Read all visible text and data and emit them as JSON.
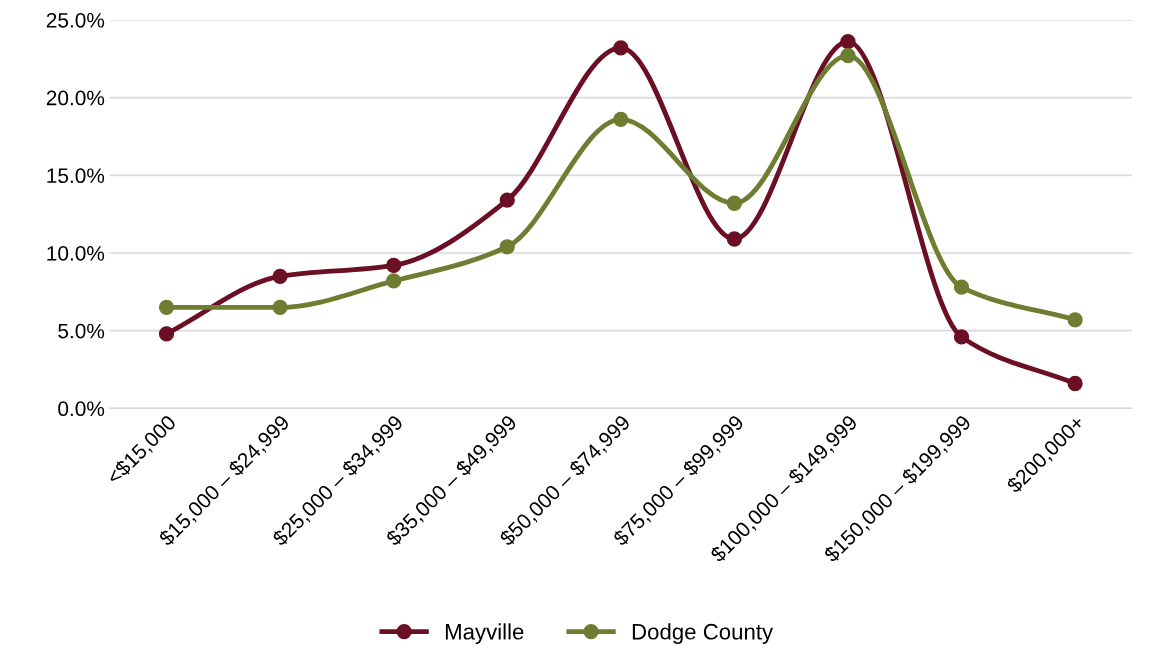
{
  "chart_data": {
    "type": "line",
    "categories": [
      "<$15,000",
      "$15,000 – $24,999",
      "$25,000 – $34,999",
      "$35,000 – $49,999",
      "$50,000 – $74,999",
      "$75,000 – $99,999",
      "$100,000 – $149,999",
      "$150,000 – $199,999",
      "$200,000+"
    ],
    "series": [
      {
        "name": "Mayville",
        "color": "#6b0f24",
        "values": [
          4.8,
          8.5,
          9.2,
          13.4,
          23.2,
          10.9,
          23.6,
          4.6,
          1.6
        ]
      },
      {
        "name": "Dodge County",
        "color": "#6f7d32",
        "values": [
          6.5,
          6.5,
          8.2,
          10.4,
          18.6,
          13.2,
          22.7,
          7.8,
          5.7
        ]
      }
    ],
    "ylim": [
      0,
      25
    ],
    "yticks": [
      {
        "value": 0,
        "label": "0.0%"
      },
      {
        "value": 5,
        "label": "5.0%"
      },
      {
        "value": 10,
        "label": "10.0%"
      },
      {
        "value": 15,
        "label": "15.0%"
      },
      {
        "value": 20,
        "label": "20.0%"
      },
      {
        "value": 25,
        "label": "25.0%"
      }
    ],
    "grid": "y",
    "legend": "bottom",
    "marker": "circle",
    "line_style": "solid"
  }
}
